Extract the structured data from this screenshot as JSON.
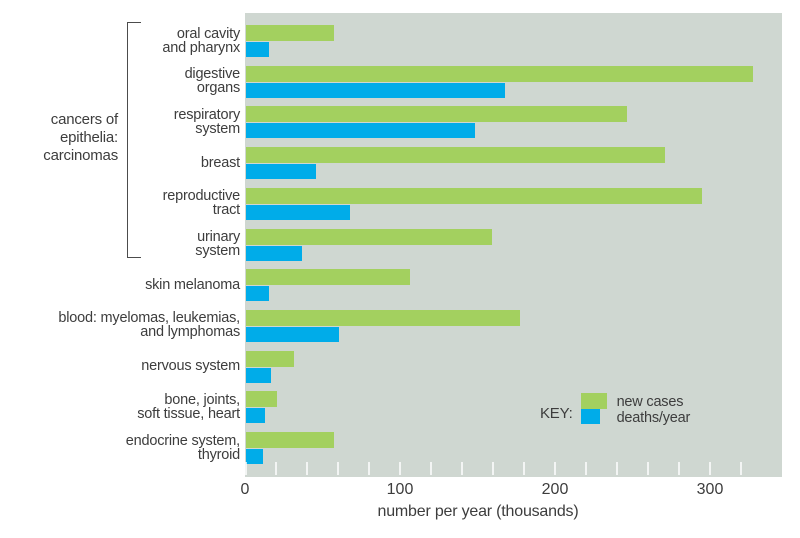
{
  "figure": {
    "background": "#ffffff",
    "plot_background": "#cfd7d1",
    "text_color": "#3d3d3d",
    "tick_color": "#ffffff"
  },
  "group_label": "cancers of\nepithelia:\ncarcinomas",
  "legend": {
    "key_label": "KEY:",
    "items": [
      {
        "label": "new cases",
        "color": "#a3d05f"
      },
      {
        "label": "deaths/year",
        "color": "#00ace9"
      }
    ]
  },
  "chart_data": {
    "type": "bar",
    "orientation": "horizontal",
    "title": "",
    "xlabel": "number per year (thousands)",
    "xlim": [
      0,
      346
    ],
    "xticks": [
      0,
      100,
      200,
      300
    ],
    "minor_tick_step": 20,
    "grid": false,
    "legend_position": "inside-lower-right",
    "categories": [
      "oral cavity\nand pharynx",
      "digestive\norgans",
      "respiratory\nsystem",
      "breast",
      "reproductive\ntract",
      "urinary\nsystem",
      "skin melanoma",
      "blood: myelomas, leukemias,\nand lymphomas",
      "nervous system",
      "bone, joints,\nsoft tissue, heart",
      "endocrine system,\nthyroid"
    ],
    "series": [
      {
        "name": "new cases",
        "color": "#a3d05f",
        "values": [
          57,
          327,
          246,
          270,
          294,
          159,
          106,
          177,
          31,
          20,
          57
        ]
      },
      {
        "name": "deaths/year",
        "color": "#00ace9",
        "values": [
          15,
          167,
          148,
          45,
          67,
          36,
          15,
          60,
          16,
          12,
          11
        ]
      }
    ],
    "category_group": {
      "label": "cancers of\nepithelia:\ncarcinomas",
      "category_range": [
        0,
        5
      ]
    }
  }
}
